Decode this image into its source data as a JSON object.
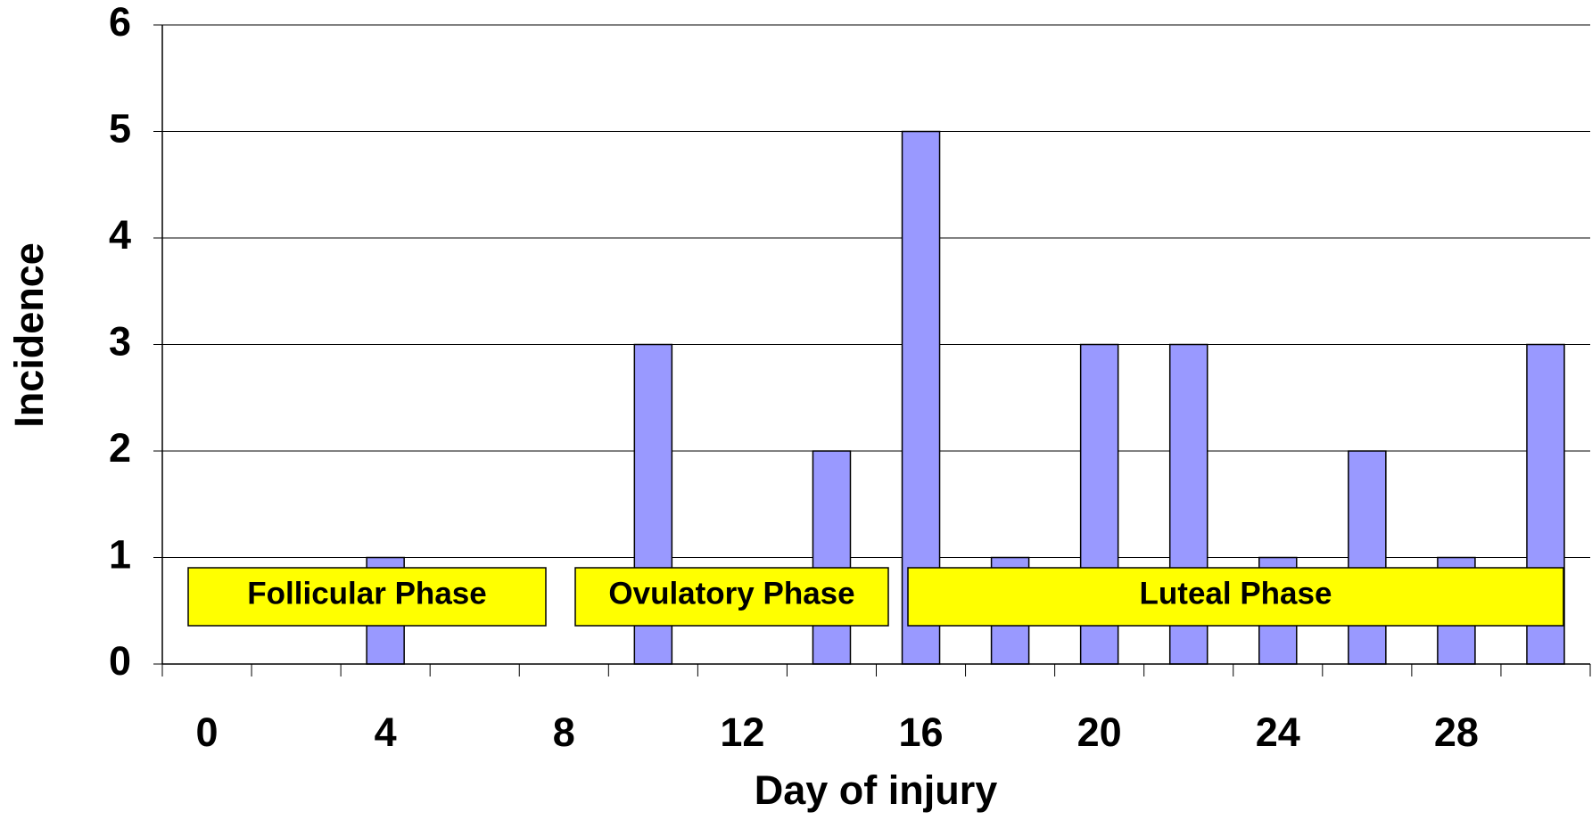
{
  "chart_data": {
    "type": "bar",
    "x_label": "Day of injury",
    "y_label": "Incidence",
    "categories": [
      "0",
      null,
      "4",
      null,
      "8",
      null,
      "12",
      null,
      "16",
      null,
      "20",
      null,
      "24",
      null,
      "28",
      null
    ],
    "values": [
      0,
      0,
      1,
      0,
      0,
      3,
      0,
      2,
      5,
      1,
      3,
      3,
      1,
      2,
      1,
      3
    ],
    "color": "#9999ff",
    "ylim": [
      0,
      6
    ],
    "yticks": [
      0,
      1,
      2,
      3,
      4,
      5,
      6
    ],
    "grid": true,
    "annotations": [
      "Follicular Phase",
      "Ovulatory Phase",
      "Luteal Phase"
    ],
    "annotation_color": "#ffff00"
  }
}
